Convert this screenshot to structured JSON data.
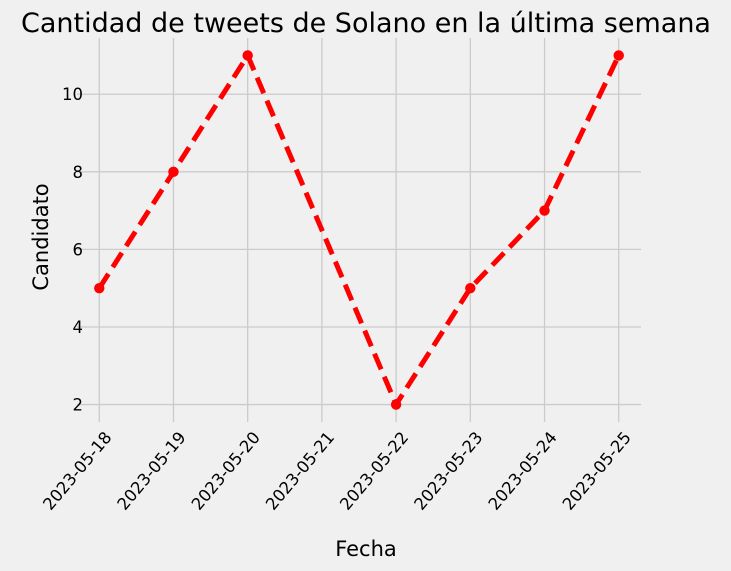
{
  "chart_data": {
    "type": "line",
    "title": "Cantidad de tweets de Solano en la última semana",
    "xlabel": "Fecha",
    "ylabel": "Candidato",
    "x": [
      "2023-05-18",
      "2023-05-19",
      "2023-05-20",
      "2023-05-22",
      "2023-05-23",
      "2023-05-24",
      "2023-05-25"
    ],
    "x_ticks": [
      "2023-05-18",
      "2023-05-19",
      "2023-05-20",
      "2023-05-21",
      "2023-05-22",
      "2023-05-23",
      "2023-05-24",
      "2023-05-25"
    ],
    "y_ticks": [
      2,
      4,
      6,
      8,
      10
    ],
    "series": [
      {
        "values": [
          5,
          8,
          11,
          2,
          5,
          7,
          11
        ],
        "color": "#ff0000"
      }
    ],
    "xlim": [
      "2023-05-17T16:48",
      "2023-05-25T07:12"
    ],
    "ylim": [
      1.55,
      11.45
    ],
    "grid": true,
    "line_style": "dashed",
    "marker": "circle",
    "background_color": "#f0f0f0"
  }
}
